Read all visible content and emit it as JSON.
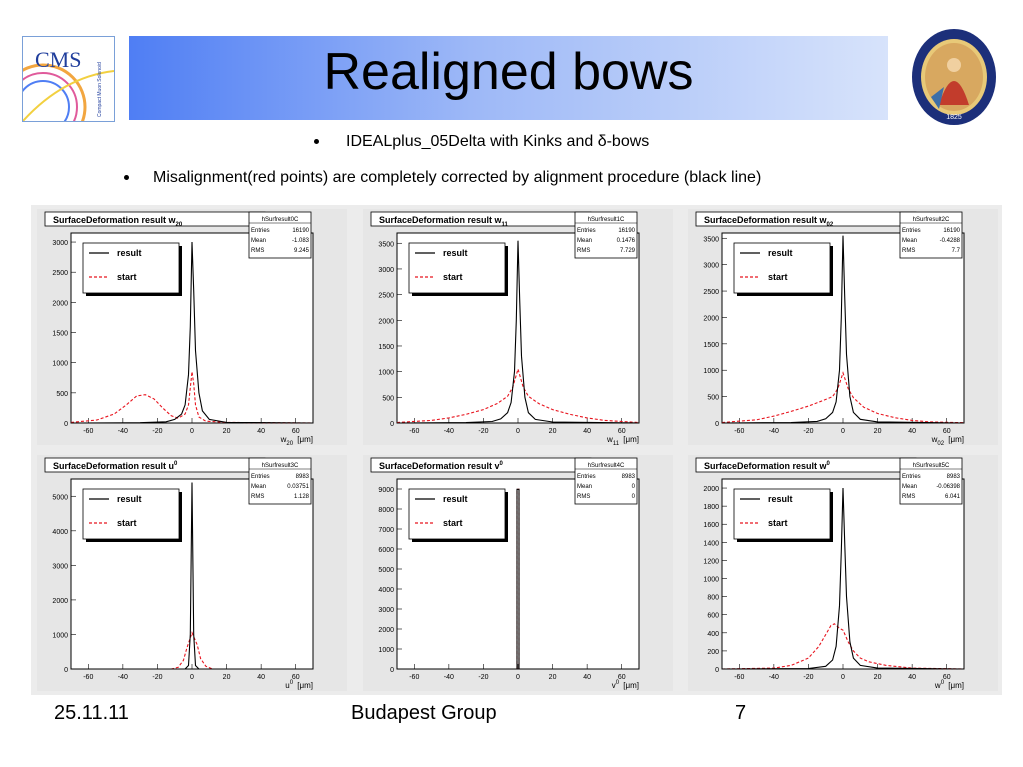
{
  "slide": {
    "title": "Realigned bows",
    "bullets": [
      "IDEALplus_05Delta  with  Kinks and δ-bows",
      "Misalignment(red points) are completely corrected by alignment procedure (black line)"
    ],
    "footer": {
      "date": "25.11.11",
      "group": "Budapest Group",
      "page": "7"
    },
    "logo_left": {
      "text": "CMS",
      "tagline": "Compact Muon Solenoid",
      "lettering_note": "logo"
    },
    "logo_right": {
      "text": "MAGYAR TUDOMÁNYOS AKADÉMIA",
      "year": "1825"
    }
  },
  "colors": {
    "result": "#000000",
    "start": "#e8141e",
    "panel_bg": "#ffffff",
    "frame_bg": "#e6e6e6",
    "title_blue": "#4f7ef4"
  },
  "chart_data": [
    {
      "type": "line",
      "title": "SurfaceDeformation result w",
      "title_sub": "20",
      "stats": {
        "name": "hSurfresult0C",
        "rows": [
          [
            "Entries",
            "16190"
          ],
          [
            "Mean",
            "-1.083"
          ],
          [
            "RMS",
            "9.245"
          ]
        ]
      },
      "xlabel": "w",
      "xlabel_sub": "20",
      "xunit": "[μm]",
      "xlim": [
        -70,
        70
      ],
      "ylim": [
        0,
        3150
      ],
      "xticks": [
        -60,
        -40,
        -20,
        0,
        20,
        40,
        60
      ],
      "yticks": [
        0,
        500,
        1000,
        1500,
        2000,
        2500,
        3000
      ],
      "legend": [
        "result",
        "start"
      ],
      "series": [
        {
          "name": "result",
          "color": "#000000",
          "style": "solid",
          "points": [
            [
              -70,
              0
            ],
            [
              -30,
              5
            ],
            [
              -15,
              20
            ],
            [
              -10,
              60
            ],
            [
              -6,
              150
            ],
            [
              -4,
              300
            ],
            [
              -2,
              800
            ],
            [
              -1,
              1600
            ],
            [
              0,
              3000
            ],
            [
              1,
              2200
            ],
            [
              2,
              1200
            ],
            [
              4,
              500
            ],
            [
              6,
              200
            ],
            [
              10,
              60
            ],
            [
              20,
              10
            ],
            [
              70,
              0
            ]
          ]
        },
        {
          "name": "start",
          "color": "#e8141e",
          "style": "dashed",
          "points": [
            [
              -70,
              10
            ],
            [
              -55,
              50
            ],
            [
              -45,
              150
            ],
            [
              -38,
              300
            ],
            [
              -32,
              450
            ],
            [
              -27,
              470
            ],
            [
              -22,
              400
            ],
            [
              -17,
              250
            ],
            [
              -12,
              120
            ],
            [
              -8,
              80
            ],
            [
              -4,
              150
            ],
            [
              -2,
              300
            ],
            [
              0,
              850
            ],
            [
              1,
              650
            ],
            [
              2,
              300
            ],
            [
              4,
              100
            ],
            [
              8,
              30
            ],
            [
              20,
              10
            ],
            [
              70,
              0
            ]
          ]
        }
      ]
    },
    {
      "type": "line",
      "title": "SurfaceDeformation result w",
      "title_sub": "11",
      "stats": {
        "name": "hSurfresult1C",
        "rows": [
          [
            "Entries",
            "16190"
          ],
          [
            "Mean",
            "0.1476"
          ],
          [
            "RMS",
            "7.729"
          ]
        ]
      },
      "xlabel": "w",
      "xlabel_sub": "11",
      "xunit": "[μm]",
      "xlim": [
        -70,
        70
      ],
      "ylim": [
        0,
        3700
      ],
      "xticks": [
        -60,
        -40,
        -20,
        0,
        20,
        40,
        60
      ],
      "yticks": [
        0,
        500,
        1000,
        1500,
        2000,
        2500,
        3000,
        3500
      ],
      "legend": [
        "result",
        "start"
      ],
      "series": [
        {
          "name": "result",
          "color": "#000000",
          "style": "solid",
          "points": [
            [
              -70,
              0
            ],
            [
              -30,
              10
            ],
            [
              -15,
              30
            ],
            [
              -10,
              80
            ],
            [
              -6,
              200
            ],
            [
              -4,
              400
            ],
            [
              -2,
              1000
            ],
            [
              -1,
              2000
            ],
            [
              0,
              3550
            ],
            [
              1,
              2400
            ],
            [
              2,
              1300
            ],
            [
              4,
              500
            ],
            [
              6,
              200
            ],
            [
              10,
              70
            ],
            [
              20,
              20
            ],
            [
              70,
              0
            ]
          ]
        },
        {
          "name": "start",
          "color": "#e8141e",
          "style": "dashed",
          "points": [
            [
              -70,
              10
            ],
            [
              -50,
              50
            ],
            [
              -40,
              100
            ],
            [
              -30,
              170
            ],
            [
              -20,
              260
            ],
            [
              -12,
              380
            ],
            [
              -6,
              520
            ],
            [
              -3,
              700
            ],
            [
              0,
              1050
            ],
            [
              3,
              700
            ],
            [
              6,
              520
            ],
            [
              12,
              380
            ],
            [
              20,
              260
            ],
            [
              30,
              170
            ],
            [
              40,
              100
            ],
            [
              50,
              50
            ],
            [
              70,
              10
            ]
          ]
        }
      ]
    },
    {
      "type": "line",
      "title": "SurfaceDeformation result w",
      "title_sub": "02",
      "stats": {
        "name": "hSurfresult2C",
        "rows": [
          [
            "Entries",
            "16190"
          ],
          [
            "Mean",
            "-0.4288"
          ],
          [
            "RMS",
            "7.7"
          ]
        ]
      },
      "xlabel": "w",
      "xlabel_sub": "02",
      "xunit": "[μm]",
      "xlim": [
        -70,
        70
      ],
      "ylim": [
        0,
        3600
      ],
      "xticks": [
        -60,
        -40,
        -20,
        0,
        20,
        40,
        60
      ],
      "yticks": [
        0,
        500,
        1000,
        1500,
        2000,
        2500,
        3000,
        3500
      ],
      "legend": [
        "result",
        "start"
      ],
      "series": [
        {
          "name": "result",
          "color": "#000000",
          "style": "solid",
          "points": [
            [
              -70,
              0
            ],
            [
              -30,
              10
            ],
            [
              -15,
              30
            ],
            [
              -10,
              80
            ],
            [
              -6,
              200
            ],
            [
              -4,
              400
            ],
            [
              -2,
              1000
            ],
            [
              -1,
              2000
            ],
            [
              0,
              3550
            ],
            [
              1,
              2400
            ],
            [
              2,
              1300
            ],
            [
              4,
              500
            ],
            [
              6,
              200
            ],
            [
              10,
              70
            ],
            [
              20,
              20
            ],
            [
              70,
              0
            ]
          ]
        },
        {
          "name": "start",
          "color": "#e8141e",
          "style": "dashed",
          "points": [
            [
              -70,
              10
            ],
            [
              -50,
              60
            ],
            [
              -40,
              130
            ],
            [
              -30,
              220
            ],
            [
              -20,
              320
            ],
            [
              -12,
              420
            ],
            [
              -6,
              500
            ],
            [
              -3,
              650
            ],
            [
              0,
              950
            ],
            [
              3,
              650
            ],
            [
              6,
              480
            ],
            [
              12,
              300
            ],
            [
              20,
              180
            ],
            [
              30,
              100
            ],
            [
              40,
              50
            ],
            [
              50,
              20
            ],
            [
              70,
              5
            ]
          ]
        }
      ]
    },
    {
      "type": "line",
      "title": "SurfaceDeformation result u",
      "title_sub": "0",
      "title_sup": true,
      "stats": {
        "name": "hSurfresult3C",
        "rows": [
          [
            "Entries",
            "8983"
          ],
          [
            "Mean",
            "0.03751"
          ],
          [
            "RMS",
            "1.128"
          ]
        ]
      },
      "xlabel": "u",
      "xlabel_sub": "0",
      "xlabel_sup": true,
      "xunit": "[μm]",
      "xlim": [
        -70,
        70
      ],
      "ylim": [
        0,
        5500
      ],
      "xticks": [
        -60,
        -40,
        -20,
        0,
        20,
        40,
        60
      ],
      "yticks": [
        0,
        1000,
        2000,
        3000,
        4000,
        5000
      ],
      "legend": [
        "result",
        "start"
      ],
      "series": [
        {
          "name": "result",
          "color": "#000000",
          "style": "solid",
          "points": [
            [
              -70,
              0
            ],
            [
              -4,
              0
            ],
            [
              -2,
              100
            ],
            [
              -1,
              1000
            ],
            [
              0,
              5400
            ],
            [
              1,
              1000
            ],
            [
              2,
              100
            ],
            [
              4,
              0
            ],
            [
              70,
              0
            ]
          ]
        },
        {
          "name": "start",
          "color": "#e8141e",
          "style": "dashed",
          "points": [
            [
              -70,
              0
            ],
            [
              -12,
              0
            ],
            [
              -8,
              50
            ],
            [
              -5,
              250
            ],
            [
              -3,
              600
            ],
            [
              0,
              1050
            ],
            [
              3,
              700
            ],
            [
              5,
              300
            ],
            [
              8,
              80
            ],
            [
              12,
              0
            ],
            [
              70,
              0
            ]
          ]
        }
      ]
    },
    {
      "type": "line",
      "title": "SurfaceDeformation result v",
      "title_sub": "0",
      "title_sup": true,
      "stats": {
        "name": "hSurfresult4C",
        "rows": [
          [
            "Entries",
            "8983"
          ],
          [
            "Mean",
            "0"
          ],
          [
            "RMS",
            "0"
          ]
        ]
      },
      "xlabel": "v",
      "xlabel_sub": "0",
      "xlabel_sup": true,
      "xunit": "[μm]",
      "xlim": [
        -70,
        70
      ],
      "ylim": [
        0,
        9500
      ],
      "xticks": [
        -60,
        -40,
        -20,
        0,
        20,
        40,
        60
      ],
      "yticks": [
        0,
        1000,
        2000,
        3000,
        4000,
        5000,
        6000,
        7000,
        8000,
        9000
      ],
      "legend": [
        "result",
        "start"
      ],
      "series": [
        {
          "name": "result",
          "color": "#000000",
          "style": "solid",
          "points": [
            [
              -70,
              0
            ],
            [
              -0.6,
              0
            ],
            [
              -0.6,
              8983
            ],
            [
              0.6,
              8983
            ],
            [
              0.6,
              0
            ],
            [
              70,
              0
            ]
          ]
        },
        {
          "name": "start",
          "color": "#e8141e",
          "style": "dashed",
          "points": [
            [
              -70,
              0
            ],
            [
              -0.6,
              0
            ],
            [
              -0.6,
              8983
            ],
            [
              0.6,
              8983
            ],
            [
              0.6,
              0
            ],
            [
              70,
              0
            ]
          ]
        }
      ]
    },
    {
      "type": "line",
      "title": "SurfaceDeformation result w",
      "title_sub": "0",
      "title_sup": true,
      "stats": {
        "name": "hSurfresult5C",
        "rows": [
          [
            "Entries",
            "8983"
          ],
          [
            "Mean",
            "-0.06398"
          ],
          [
            "RMS",
            "6.041"
          ]
        ]
      },
      "xlabel": "w",
      "xlabel_sub": "0",
      "xlabel_sup": true,
      "xunit": "[μm]",
      "xlim": [
        -70,
        70
      ],
      "ylim": [
        0,
        2100
      ],
      "xticks": [
        -60,
        -40,
        -20,
        0,
        20,
        40,
        60
      ],
      "yticks": [
        0,
        200,
        400,
        600,
        800,
        1000,
        1200,
        1400,
        1600,
        1800,
        2000
      ],
      "legend": [
        "result",
        "start"
      ],
      "series": [
        {
          "name": "result",
          "color": "#000000",
          "style": "solid",
          "points": [
            [
              -70,
              0
            ],
            [
              -20,
              5
            ],
            [
              -10,
              30
            ],
            [
              -6,
              100
            ],
            [
              -4,
              250
            ],
            [
              -2,
              700
            ],
            [
              -1,
              1300
            ],
            [
              0,
              2000
            ],
            [
              1,
              1400
            ],
            [
              2,
              800
            ],
            [
              4,
              300
            ],
            [
              6,
              120
            ],
            [
              10,
              40
            ],
            [
              20,
              10
            ],
            [
              70,
              0
            ]
          ]
        },
        {
          "name": "start",
          "color": "#e8141e",
          "style": "dashed",
          "points": [
            [
              -70,
              0
            ],
            [
              -40,
              10
            ],
            [
              -30,
              40
            ],
            [
              -20,
              120
            ],
            [
              -14,
              250
            ],
            [
              -10,
              380
            ],
            [
              -7,
              480
            ],
            [
              -5,
              500
            ],
            [
              -2,
              450
            ],
            [
              0,
              430
            ],
            [
              3,
              300
            ],
            [
              6,
              200
            ],
            [
              10,
              120
            ],
            [
              15,
              80
            ],
            [
              25,
              40
            ],
            [
              40,
              10
            ],
            [
              70,
              0
            ]
          ]
        }
      ]
    }
  ]
}
